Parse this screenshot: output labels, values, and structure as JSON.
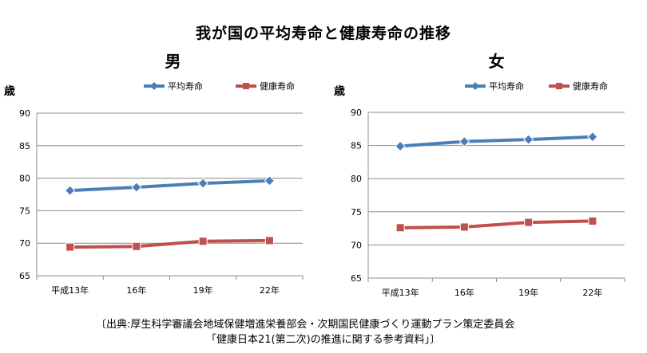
{
  "title": "我が国の平均寿命と健康寿命の推移",
  "source_line1": "〔出典:厚生科学審議会地域保健増進栄養部会・次期国民健康づくり運動プラン策定委員会",
  "source_line2": "「健康日本21(第二次)の推進に関する参考資料」〕",
  "colors": {
    "avg": "#4a7ebb",
    "healthy": "#c0504d",
    "grid": "#8c8c8c"
  },
  "chart_data": [
    {
      "type": "line",
      "title": "男",
      "ylabel": "歳",
      "ylim": [
        65,
        90
      ],
      "yticks": [
        90,
        85,
        80,
        75,
        70,
        65
      ],
      "categories": [
        "平成13年",
        "16年",
        "19年",
        "22年"
      ],
      "legend_position": "top-right",
      "series": [
        {
          "name": "平均寿命",
          "values": [
            78.1,
            78.6,
            79.2,
            79.6
          ]
        },
        {
          "name": "健康寿命",
          "values": [
            69.4,
            69.5,
            70.3,
            70.4
          ]
        }
      ]
    },
    {
      "type": "line",
      "title": "女",
      "ylabel": "歳",
      "ylim": [
        65,
        90
      ],
      "yticks": [
        90,
        85,
        80,
        75,
        70,
        65
      ],
      "categories": [
        "平成13年",
        "16年",
        "19年",
        "22年"
      ],
      "legend_position": "top-right",
      "series": [
        {
          "name": "平均寿命",
          "values": [
            84.9,
            85.6,
            85.9,
            86.3
          ]
        },
        {
          "name": "健康寿命",
          "values": [
            72.6,
            72.7,
            73.4,
            73.6
          ]
        }
      ]
    }
  ]
}
